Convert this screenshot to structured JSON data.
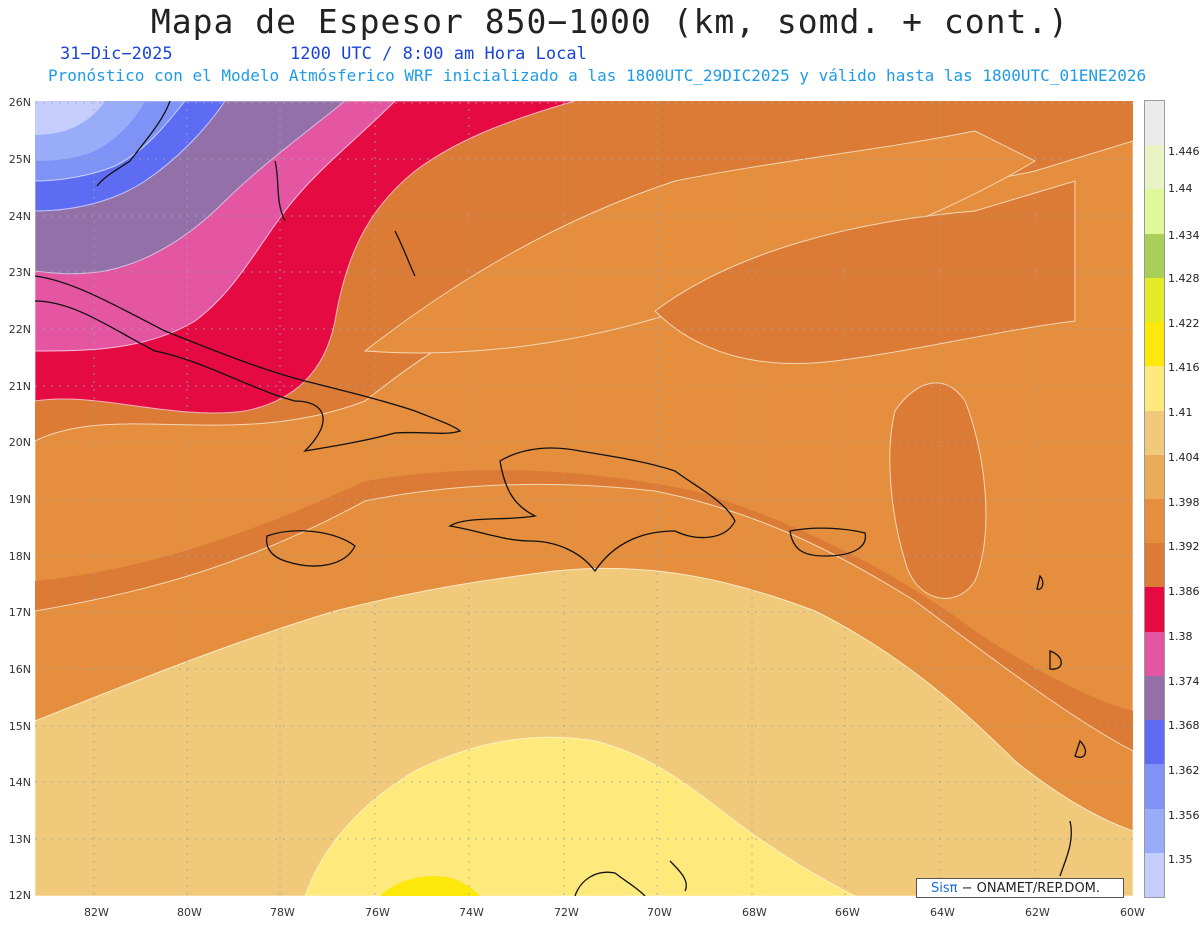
{
  "title": "Mapa de Espesor 850−1000 (km, somd. + cont.)",
  "date": "31−Dic−2025",
  "time": "1200 UTC / 8:00 am Hora Local",
  "subtitle": "Pronóstico con el Modelo Atmósferico WRF inicializado a las 1800UTC_29DIC2025 y válido hasta las  1800UTC_01ENE2026",
  "credit": {
    "brand": "Sisπ",
    "text": "− ONAMET/REP.DOM."
  },
  "lat_labels": [
    "26N",
    "25N",
    "24N",
    "23N",
    "22N",
    "21N",
    "20N",
    "19N",
    "18N",
    "17N",
    "16N",
    "15N",
    "14N",
    "13N",
    "12N"
  ],
  "lon_labels": [
    "82W",
    "80W",
    "78W",
    "76W",
    "74W",
    "72W",
    "70W",
    "68W",
    "66W",
    "64W",
    "62W",
    "60W"
  ],
  "colorbar": {
    "levels": [
      "1.35",
      "1.356",
      "1.362",
      "1.368",
      "1.374",
      "1.38",
      "1.386",
      "1.392",
      "1.398",
      "1.404",
      "1.41",
      "1.416",
      "1.422",
      "1.428",
      "1.434",
      "1.44",
      "1.446"
    ],
    "colors": [
      "#c4cdfc",
      "#98acfa",
      "#7f93f7",
      "#5e6cf4",
      "#9470a9",
      "#e455a2",
      "#e60a42",
      "#dc7b36",
      "#e48e3e",
      "#ebab59",
      "#f1c97a",
      "#fee97c",
      "#fce80a",
      "#e4ec28",
      "#a9cf59",
      "#def89a",
      "#eaf3c4",
      "#ebebeb"
    ]
  }
}
